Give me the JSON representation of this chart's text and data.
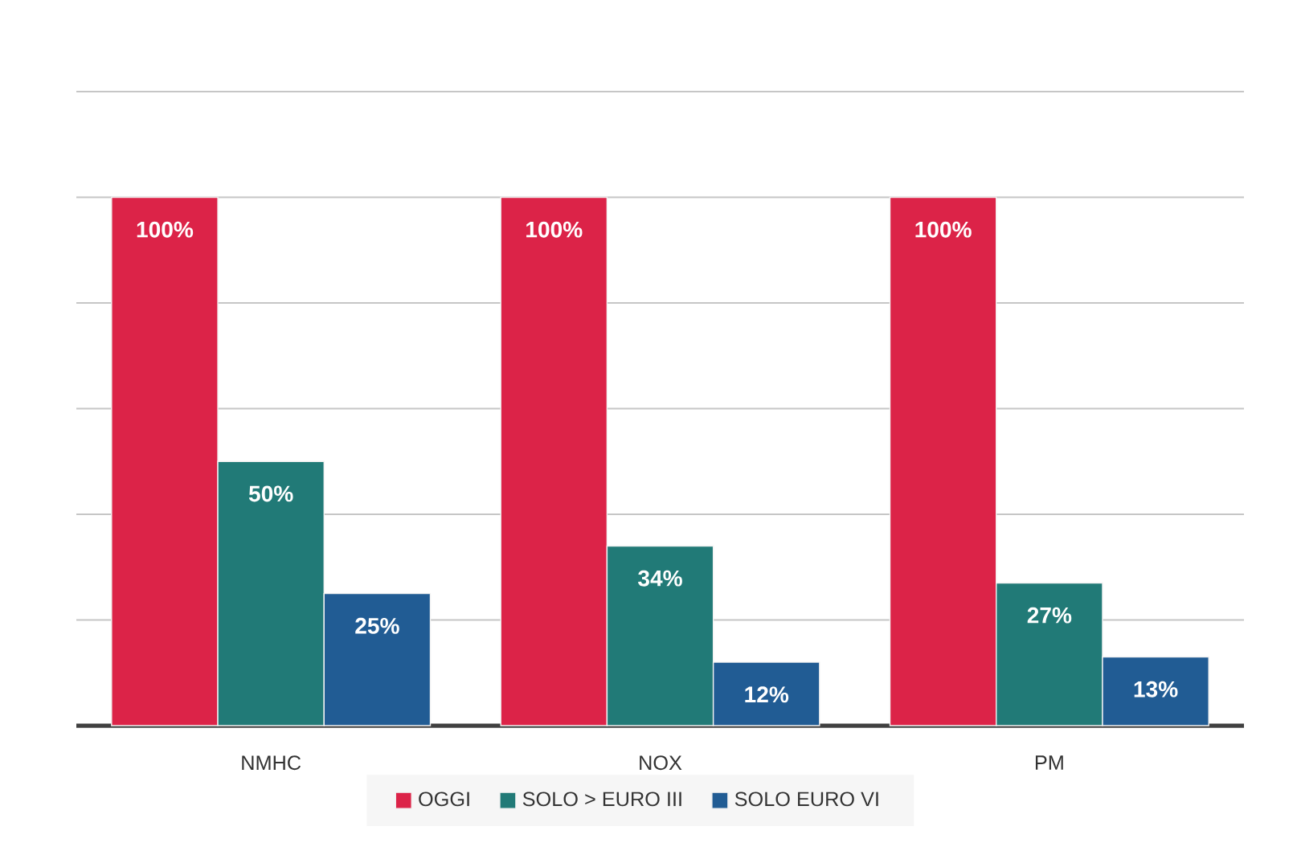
{
  "chart_data": {
    "type": "bar",
    "categories": [
      "NMHC",
      "NOX",
      "PM"
    ],
    "series": [
      {
        "name": "OGGI",
        "color": "#dc2348",
        "values": [
          100,
          100,
          100
        ],
        "value_labels": [
          "100%",
          "100%",
          "100%"
        ]
      },
      {
        "name": "SOLO > EURO III",
        "color": "#217a77",
        "values": [
          50,
          34,
          27
        ],
        "value_labels": [
          "50%",
          "34%",
          "27%"
        ]
      },
      {
        "name": "SOLO EURO VI",
        "color": "#215c94",
        "values": [
          25,
          12,
          13
        ],
        "value_labels": [
          "25%",
          "12%",
          "13%"
        ]
      }
    ],
    "grid": "y",
    "tick_labels": "x",
    "legend": "bottom"
  }
}
